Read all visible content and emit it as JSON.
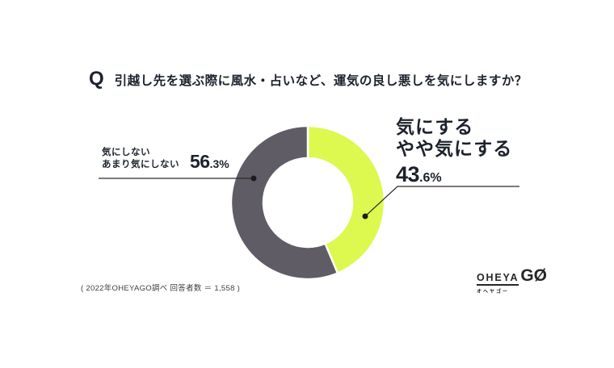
{
  "header": {
    "q_mark": "Q",
    "title": "引越し先を選ぶ際に風水・占いなど、運気の良し悪しを気にしますか？"
  },
  "chart_data": {
    "type": "pie",
    "subtype": "donut",
    "title": "引越し先を選ぶ際に風水・占いなど、運気の良し悪しを気にしますか？",
    "segments": [
      {
        "label": "気にする・やや気にする",
        "value": 43.6,
        "color": "#DDF84E"
      },
      {
        "label": "気にしない・あまり気にしない",
        "value": 56.3,
        "color": "#5F5C66"
      }
    ],
    "data_labels": [
      "43.6%",
      "56.3%"
    ],
    "start_angle_deg": 0,
    "direction": "clockwise",
    "donut_hole_ratio": 0.58,
    "separator_color": "#ffffff",
    "legend": "none"
  },
  "annotations": {
    "left": {
      "line1": "気にしない",
      "line2": "あまり気にしない",
      "value_big": "56",
      "value_small": ".3%"
    },
    "right": {
      "line1": "気にする",
      "line2": "やや気にする",
      "value_big": "43",
      "value_small": ".6%"
    }
  },
  "footer": {
    "source_note": "( 2022年OHEYAGO調べ 回答者数 ＝ 1,558 )"
  },
  "logo": {
    "brand_top": "OHEYA",
    "brand_main": "GØ",
    "brand_sub": "オヘヤゴー"
  },
  "colors": {
    "text": "#1c222c",
    "leader_line": "#2b2b2b",
    "background": "#ffffff"
  }
}
